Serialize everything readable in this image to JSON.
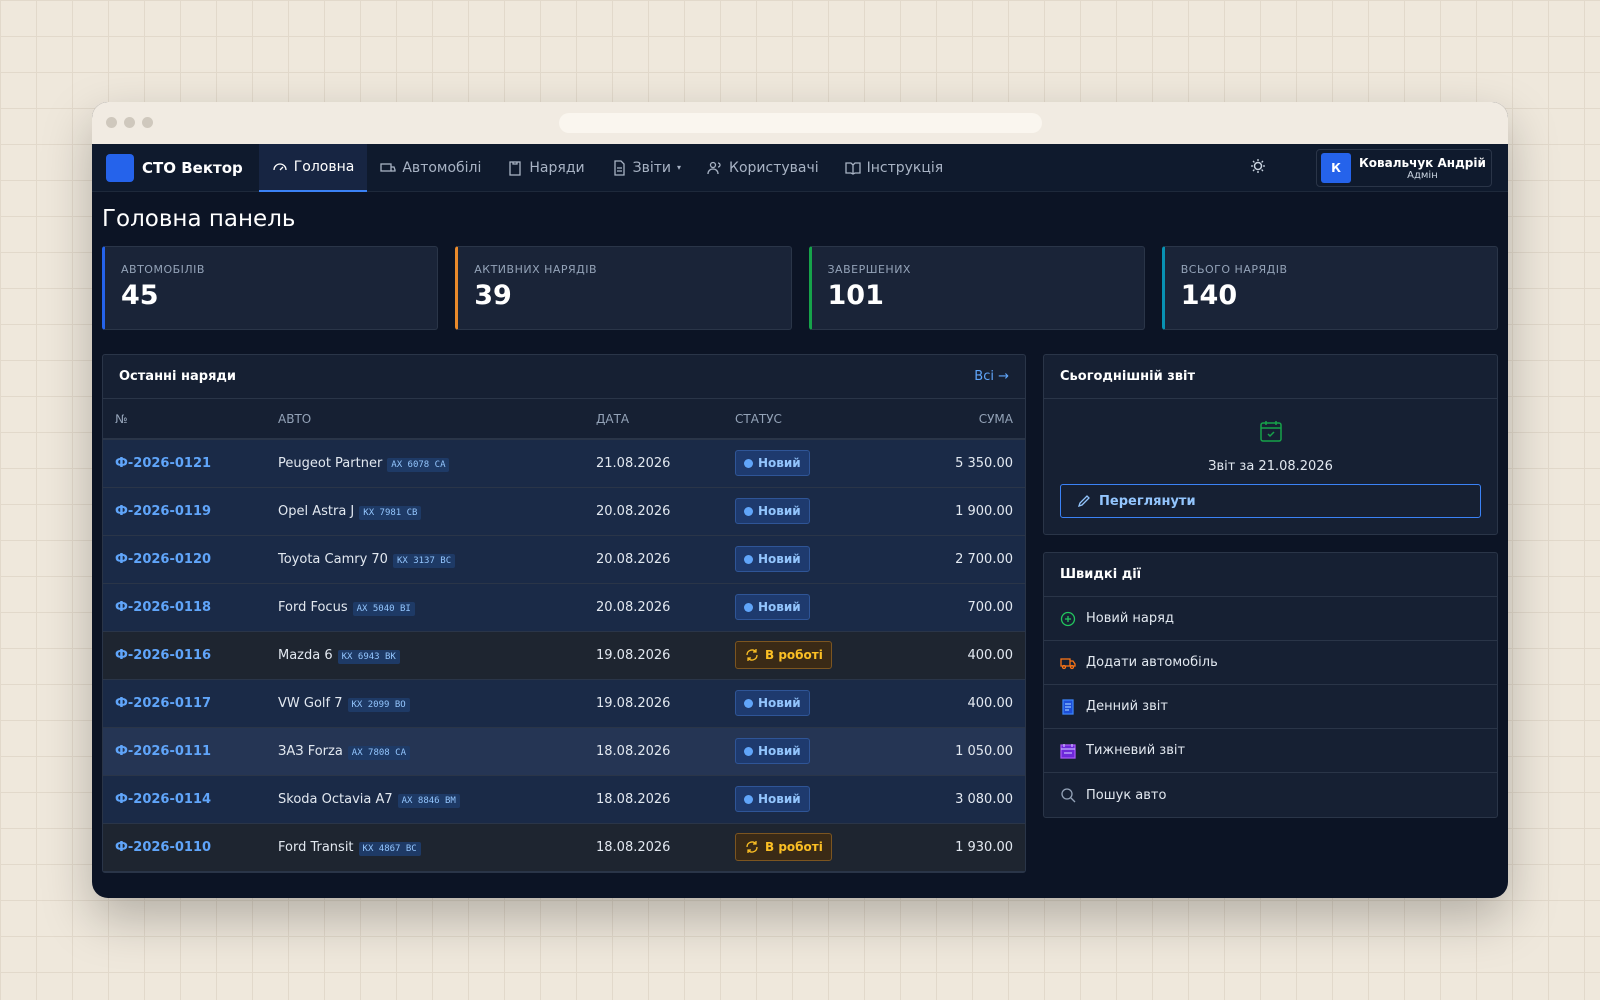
{
  "app": {
    "brand": "СТО Вектор",
    "nav": [
      "Головна",
      "Автомобілі",
      "Наряди",
      "Звіти",
      "Користувачі",
      "Інструкція"
    ],
    "user": {
      "initial": "К",
      "name": "Ковальчук Андрій",
      "role": "Адмін"
    }
  },
  "page_title": "Головна панель",
  "stats": [
    {
      "label": "АВТОМОБІЛІВ",
      "value": "45"
    },
    {
      "label": "АКТИВНИХ НАРЯДІВ",
      "value": "39"
    },
    {
      "label": "ЗАВЕРШЕНИХ",
      "value": "101"
    },
    {
      "label": "ВСЬОГО НАРЯДІВ",
      "value": "140"
    }
  ],
  "recent_orders": {
    "title": "Останні наряди",
    "link": "Всі →",
    "columns": [
      "№",
      "АВТО",
      "ДАТА",
      "СТАТУС",
      "СУМА"
    ],
    "rows": [
      {
        "number": "Ф-2026-0121",
        "car": "Peugeot Partner",
        "plate": "AX 6078 CA",
        "date": "21.08.2026",
        "status": "Новий",
        "sum": "5 350.00"
      },
      {
        "number": "Ф-2026-0119",
        "car": "Opel Astra J",
        "plate": "KX 7981 CB",
        "date": "20.08.2026",
        "status": "Новий",
        "sum": "1 900.00"
      },
      {
        "number": "Ф-2026-0120",
        "car": "Toyota Camry 70",
        "plate": "KX 3137 BC",
        "date": "20.08.2026",
        "status": "Новий",
        "sum": "2 700.00"
      },
      {
        "number": "Ф-2026-0118",
        "car": "Ford Focus",
        "plate": "AX 5040 BI",
        "date": "20.08.2026",
        "status": "Новий",
        "sum": "700.00"
      },
      {
        "number": "Ф-2026-0116",
        "car": "Mazda 6",
        "plate": "KX 6943 BK",
        "date": "19.08.2026",
        "status": "В роботі",
        "sum": "400.00"
      },
      {
        "number": "Ф-2026-0117",
        "car": "VW Golf 7",
        "plate": "KX 2099 BO",
        "date": "19.08.2026",
        "status": "Новий",
        "sum": "400.00"
      },
      {
        "number": "Ф-2026-0111",
        "car": "ЗАЗ Forza",
        "plate": "AX 7808 CA",
        "date": "18.08.2026",
        "status": "Новий",
        "sum": "1 050.00"
      },
      {
        "number": "Ф-2026-0114",
        "car": "Skoda Octavia A7",
        "plate": "AX 8846 BM",
        "date": "18.08.2026",
        "status": "Новий",
        "sum": "3 080.00"
      },
      {
        "number": "Ф-2026-0110",
        "car": "Ford Transit",
        "plate": "KX 4867 BC",
        "date": "18.08.2026",
        "status": "В роботі",
        "sum": "1 930.00"
      }
    ]
  },
  "today_report": {
    "title": "Сьогоднішній звіт",
    "text": "Звіт за 21.08.2026",
    "button": "Переглянути"
  },
  "quick_actions": {
    "title": "Швидкі дії",
    "items": [
      "Новий наряд",
      "Додати автомобіль",
      "Денний звіт",
      "Тижневий звіт",
      "Пошук авто"
    ]
  }
}
